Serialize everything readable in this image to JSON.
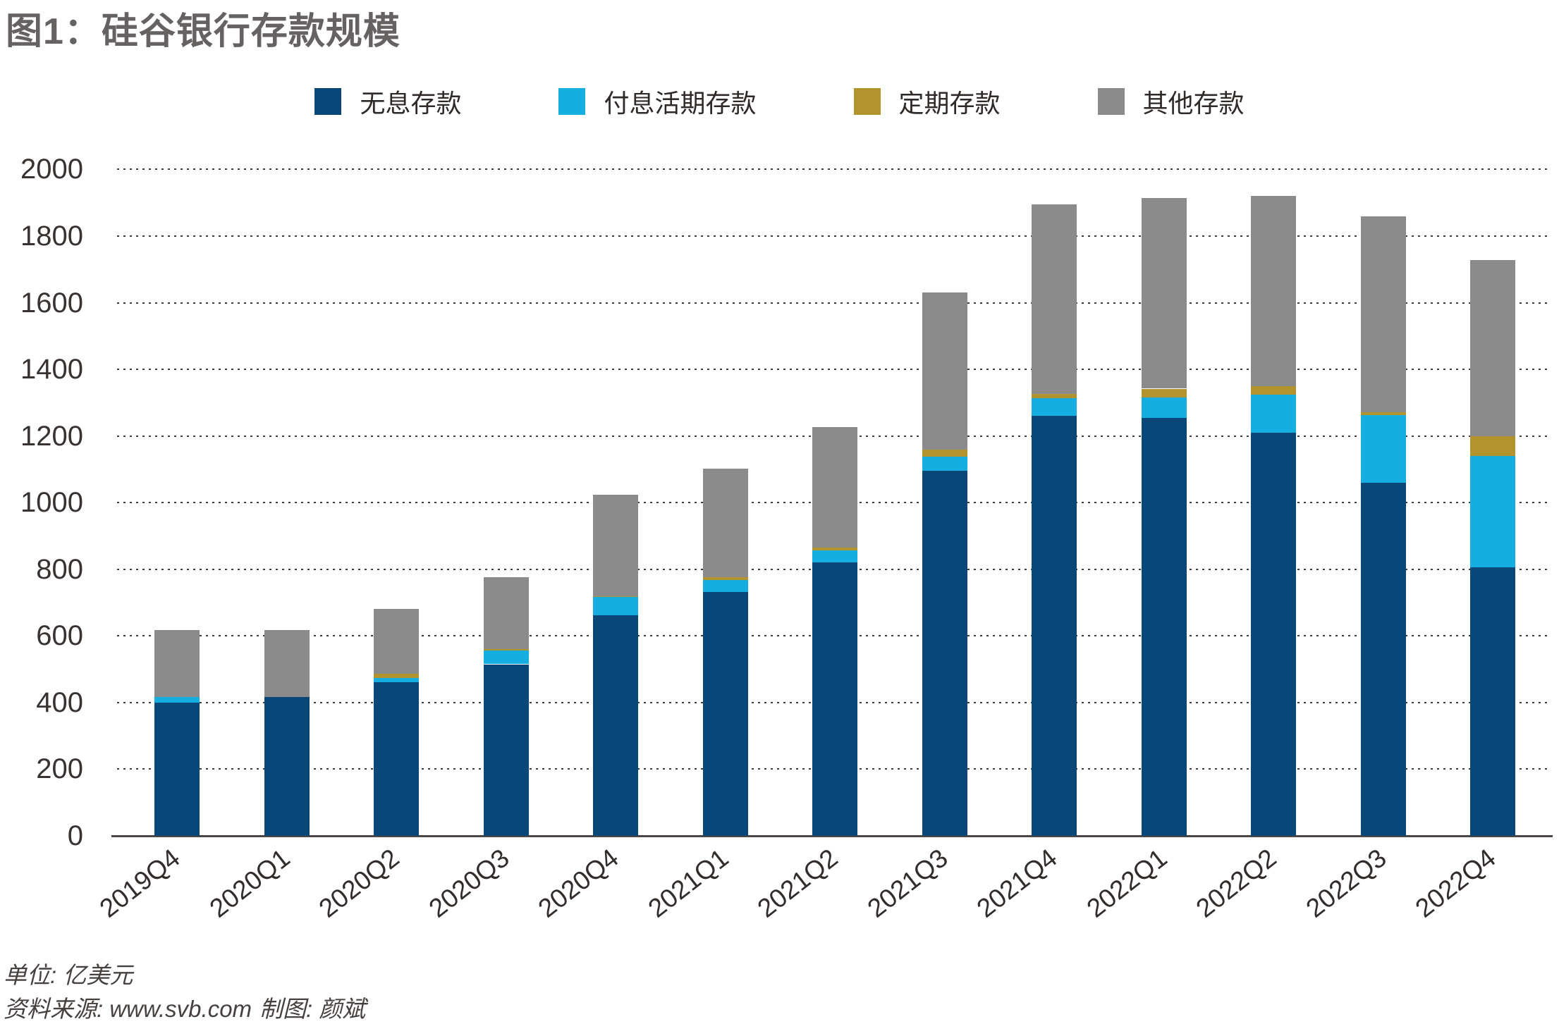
{
  "title": "图1：硅谷银行存款规模",
  "footer": {
    "unit": "单位: 亿美元",
    "source": "资料来源: www.svb.com",
    "credit": "制图: 颜斌"
  },
  "colors": {
    "navy": "#0a4779",
    "cyan": "#16ade1",
    "gold": "#b3932e",
    "gray": "#8b8b8b",
    "title_text": "#666261",
    "axis_text": "#322d2b",
    "axis_line": "#4c4745",
    "grid_dots": "#3e3a38",
    "background": "#ffffff"
  },
  "chart_data": {
    "type": "bar",
    "stacked": true,
    "title": "图1：硅谷银行存款规模",
    "unit_label": "亿美元",
    "xlabel": "",
    "ylabel": "",
    "ylim": [
      0,
      2000
    ],
    "ytick_step": 200,
    "ytick_labels": [
      "0",
      "200",
      "400",
      "600",
      "800",
      "1000",
      "1200",
      "1400",
      "1600",
      "1800",
      "2000"
    ],
    "grid": "horizontal-dotted",
    "legend_position": "top",
    "categories": [
      "2019Q4",
      "2020Q1",
      "2020Q2",
      "2020Q3",
      "2020Q4",
      "2021Q1",
      "2021Q2",
      "2021Q3",
      "2021Q4",
      "2022Q1",
      "2022Q2",
      "2022Q3",
      "2022Q4"
    ],
    "series": [
      {
        "name": "无息存款",
        "color_key": "navy",
        "values": [
          400,
          417,
          461,
          515,
          661,
          732,
          821,
          1095,
          1261,
          1254,
          1209,
          1060,
          805
        ]
      },
      {
        "name": "付息活期存款",
        "color_key": "cyan",
        "values": [
          17,
          0,
          13,
          42,
          55,
          35,
          36,
          42,
          52,
          61,
          116,
          202,
          335
        ]
      },
      {
        "name": "定期存款",
        "color_key": "gold",
        "values": [
          0,
          0,
          13,
          4,
          4,
          9,
          9,
          21,
          13,
          27,
          24,
          9,
          60
        ]
      },
      {
        "name": "其他存款",
        "color_key": "gray",
        "values": [
          201,
          201,
          193,
          215,
          303,
          327,
          361,
          472,
          569,
          573,
          571,
          589,
          528
        ]
      }
    ],
    "totals": [
      618,
      618,
      680,
      776,
      1023,
      1103,
      1227,
      1630,
      1895,
      1915,
      1920,
      1860,
      1728
    ]
  }
}
